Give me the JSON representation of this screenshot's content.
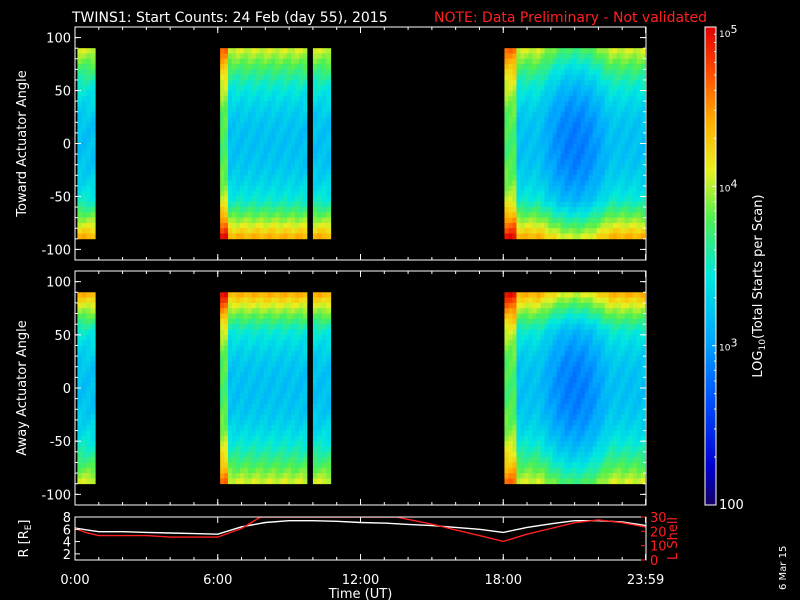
{
  "title": {
    "main": "TWINS1: Start Counts: 24 Feb (day  55), 2015",
    "note": "NOTE: Data Preliminary - Not validated"
  },
  "side_stamp": "6 Mar 15",
  "colors": {
    "background": "#000000",
    "frame": "#ffffff",
    "note_red": "#ff2020",
    "r_line": "#ffffff",
    "lshell_line": "#ff2020"
  },
  "chart_data": [
    {
      "type": "heatmap",
      "panel": "toward",
      "ylabel": "Toward Actuator Angle",
      "xlim": [
        0,
        24
      ],
      "ylim": [
        -110,
        110
      ],
      "yticks": [
        "100",
        "50",
        "0",
        "-50",
        "-100"
      ],
      "ytick_values": [
        100,
        50,
        0,
        -50,
        -100
      ],
      "data_y_range": [
        -90,
        90
      ],
      "data_intervals_hours": [
        [
          0.1,
          0.85
        ],
        [
          6.1,
          9.75
        ],
        [
          10.0,
          10.75
        ],
        [
          18.05,
          23.95
        ]
      ],
      "typical_log_counts": {
        "center": 3.2,
        "edges": 4.1
      }
    },
    {
      "type": "heatmap",
      "panel": "away",
      "ylabel": "Away Actuator Angle",
      "xlim": [
        0,
        24
      ],
      "ylim": [
        -110,
        110
      ],
      "yticks": [
        "100",
        "50",
        "0",
        "-50",
        "-100"
      ],
      "ytick_values": [
        100,
        50,
        0,
        -50,
        -100
      ],
      "data_y_range": [
        -90,
        90
      ],
      "data_intervals_hours": [
        [
          0.1,
          0.85
        ],
        [
          6.1,
          9.75
        ],
        [
          10.0,
          10.75
        ],
        [
          18.05,
          23.95
        ]
      ],
      "typical_log_counts": {
        "center": 3.2,
        "edges": 4.1
      }
    },
    {
      "type": "line",
      "panel": "orbit",
      "xlabel": "Time (UT)",
      "ylabel_left": "R [R",
      "ylabel_left_sub": "E",
      "ylabel_left_end": "]",
      "ylabel_right": "L Shell",
      "xlim": [
        0,
        24
      ],
      "xticks": [
        "0:00",
        "6:00",
        "12:00",
        "18:00",
        "23:59"
      ],
      "xtick_values": [
        0,
        6,
        12,
        18,
        23.983
      ],
      "ylim_left": [
        1,
        8
      ],
      "yticks_left": [
        "8",
        "6",
        "4",
        "2"
      ],
      "ytick_values_left": [
        8,
        6,
        4,
        2
      ],
      "ylim_right": [
        0,
        30
      ],
      "yticks_right": [
        "30",
        "20",
        "10",
        "0"
      ],
      "ytick_values_right": [
        30,
        20,
        10,
        0
      ],
      "series": [
        {
          "axis": "left",
          "x": [
            0,
            0.5,
            1,
            2,
            3,
            4,
            5,
            6,
            7,
            8,
            9,
            10,
            11,
            12,
            13,
            14,
            15,
            16,
            17,
            18,
            19,
            20,
            21,
            22,
            23,
            24
          ],
          "values": [
            6.2,
            5.9,
            5.6,
            5.6,
            5.5,
            5.4,
            5.3,
            5.2,
            6.4,
            7.1,
            7.4,
            7.4,
            7.3,
            7.1,
            7.0,
            6.8,
            6.6,
            6.3,
            6.0,
            5.5,
            6.3,
            6.9,
            7.4,
            7.4,
            7.2,
            6.6
          ]
        },
        {
          "axis": "right",
          "x": [
            0,
            0.5,
            1,
            2,
            3,
            4,
            5,
            6,
            7,
            7.8,
            13.5,
            15,
            16,
            17,
            18,
            19,
            20,
            21,
            22,
            23,
            24
          ],
          "values": [
            22,
            19,
            17,
            17,
            17,
            16,
            16,
            16,
            22,
            30,
            30,
            25,
            21,
            17,
            13,
            18,
            22,
            26,
            28,
            26,
            23
          ]
        }
      ]
    },
    {
      "type": "heatmap",
      "panel": "colorbar",
      "ylabel_prefix": "LOG",
      "ylabel_sub": "10",
      "ylabel_suffix": "(Total Starts per Scan)",
      "scale": "log",
      "ylim": [
        100,
        100000
      ],
      "ticks": [
        {
          "base": "10",
          "exp": "5",
          "value": 100000
        },
        {
          "base": "10",
          "exp": "4",
          "value": 10000
        },
        {
          "base": "10",
          "exp": "3",
          "value": 1000
        },
        {
          "base": "100",
          "exp": "",
          "value": 100
        }
      ]
    }
  ]
}
